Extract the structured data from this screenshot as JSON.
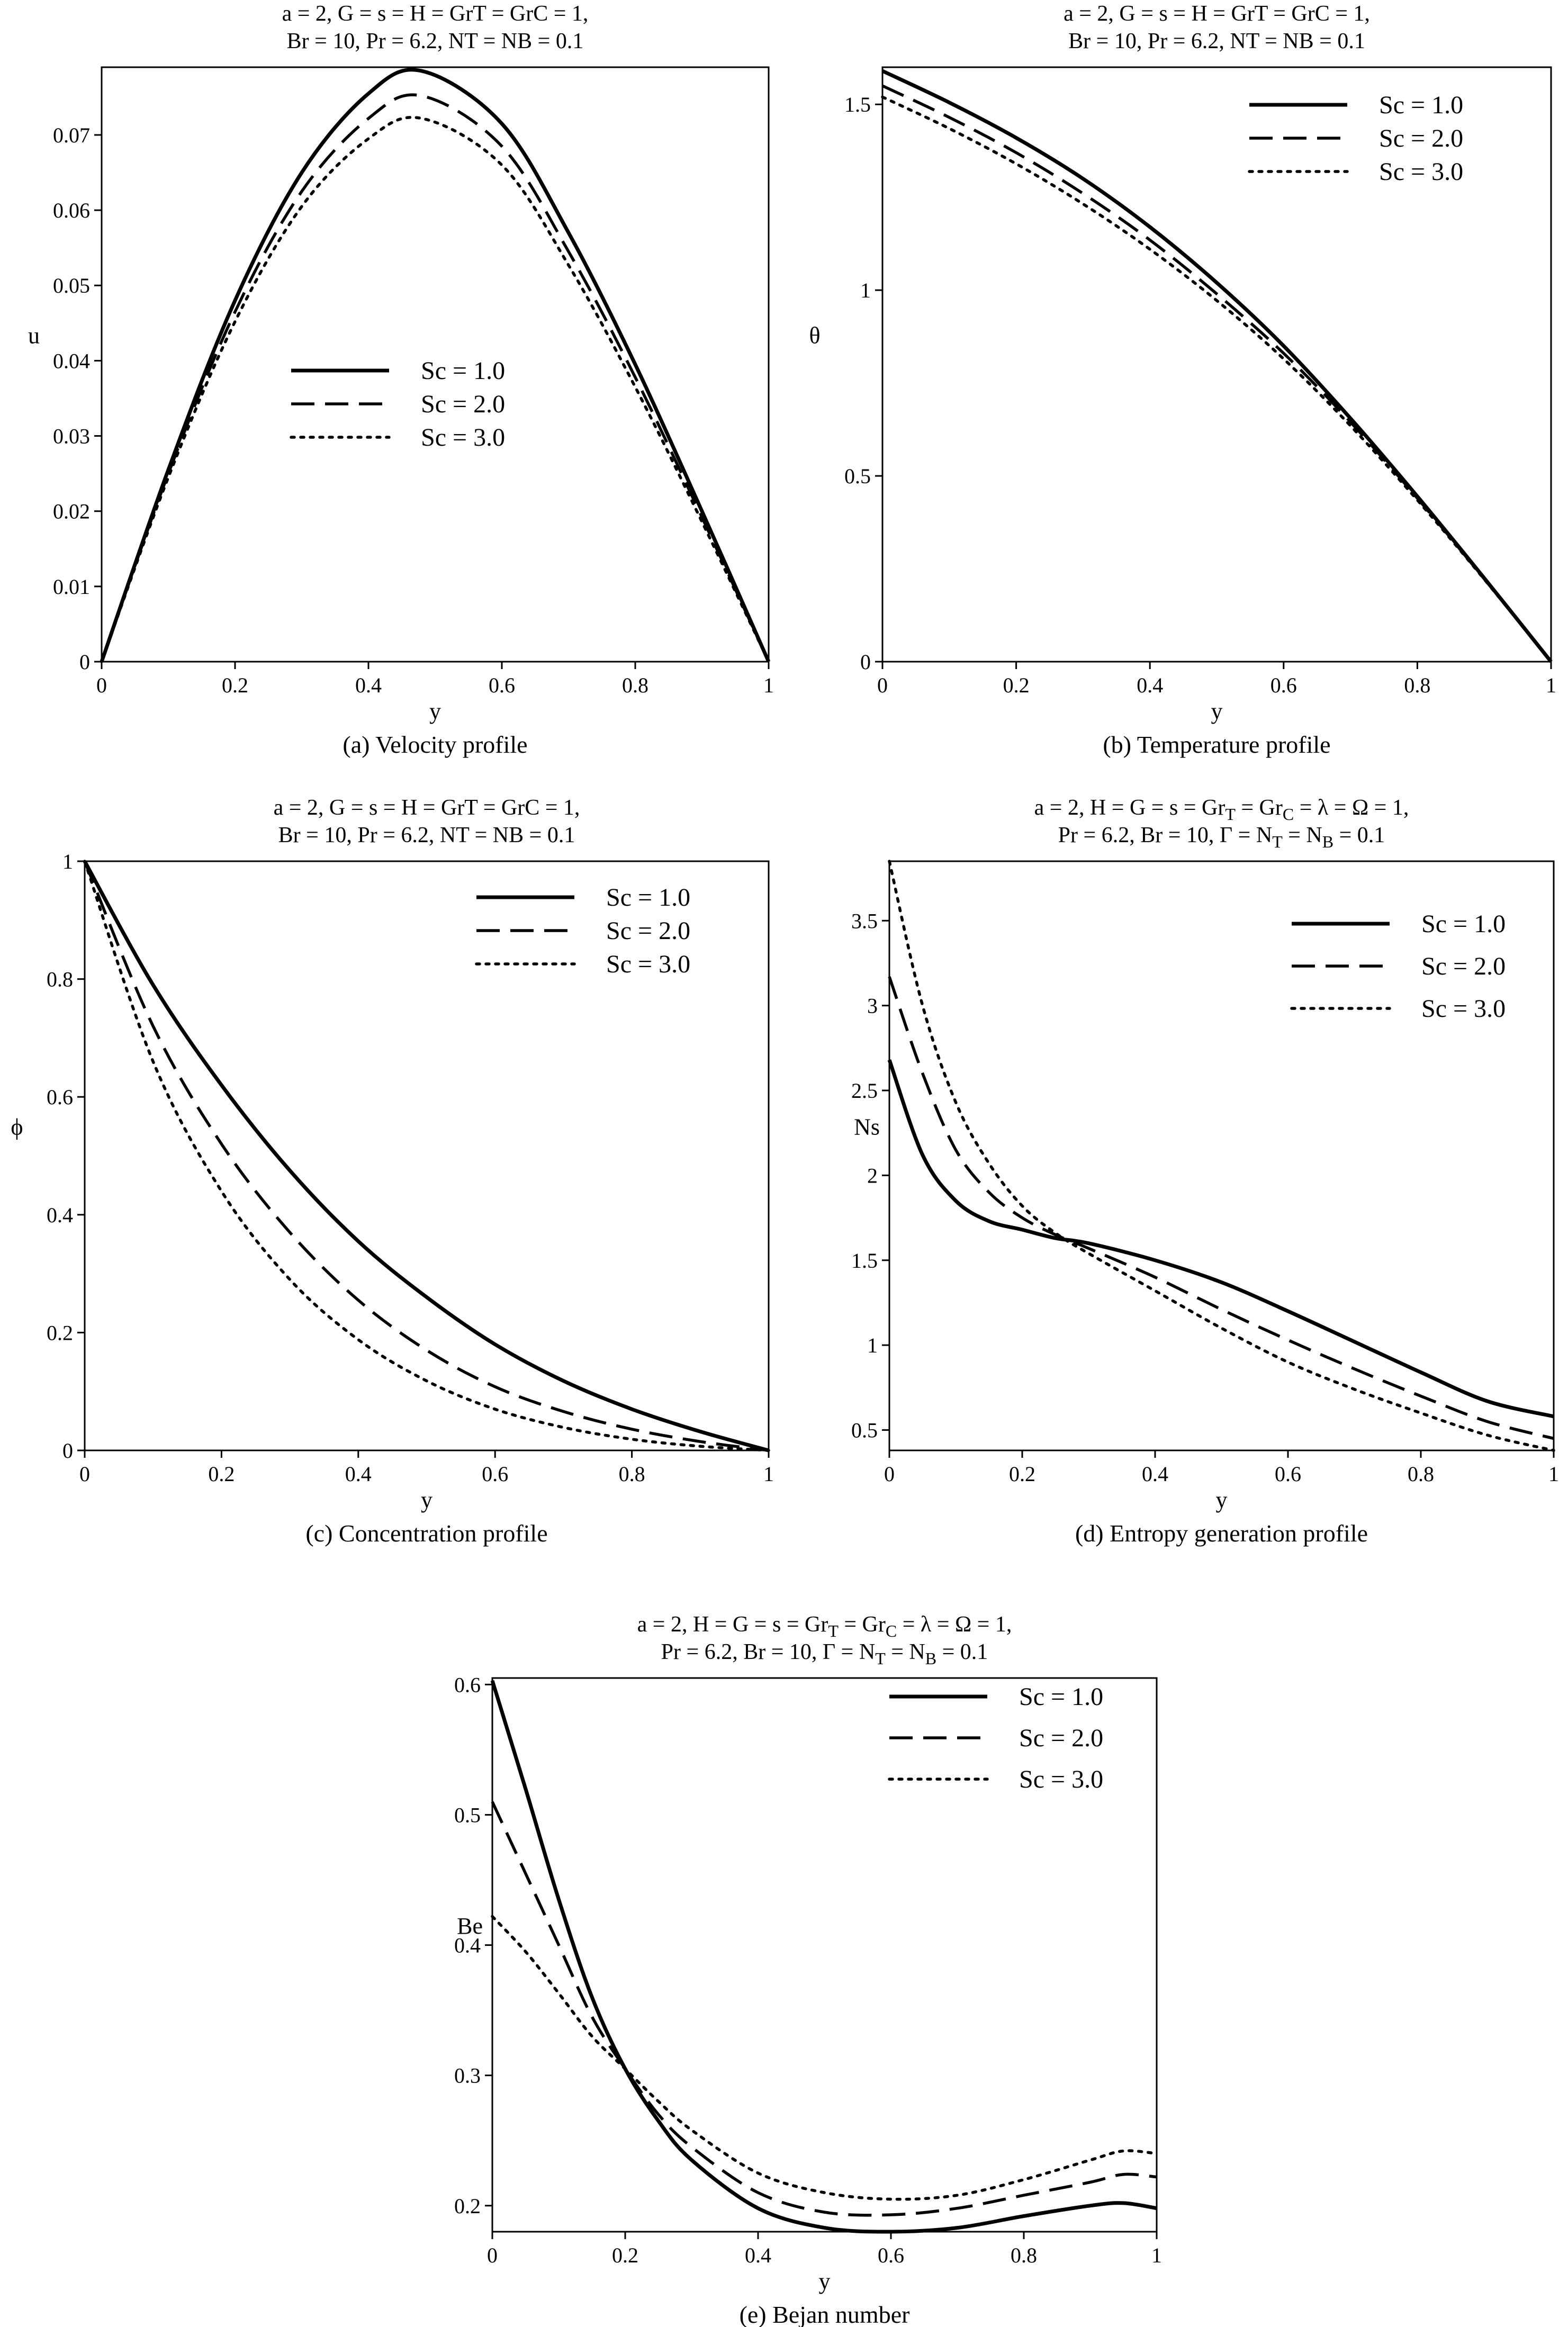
{
  "figure": {
    "panels": [
      "a",
      "b",
      "c",
      "d",
      "e"
    ]
  },
  "chart_data": [
    {
      "id": "a",
      "type": "line",
      "title": [
        "a = 2, G = s = H =  GrT = GrC = 1,",
        "Br = 10, Pr = 6.2, NT = NB = 0.1"
      ],
      "xlabel": "y",
      "ylabel": "u",
      "caption": "(a) Velocity profile",
      "xlim": [
        0,
        1
      ],
      "ylim": [
        0,
        0.079
      ],
      "xticks": [
        0,
        0.2,
        0.4,
        0.6,
        0.8,
        1
      ],
      "xtick_labels": [
        "0",
        "0.2",
        "0.4",
        "0.6",
        "0.8",
        "1"
      ],
      "yticks": [
        0,
        0.01,
        0.02,
        0.03,
        0.04,
        0.05,
        0.06,
        0.07
      ],
      "ytick_labels": [
        "0",
        "0.01",
        "0.02",
        "0.03",
        "0.04",
        "0.05",
        "0.06",
        "0.07"
      ],
      "legend_position": "center",
      "x": [
        0,
        0.1,
        0.2,
        0.3,
        0.4,
        0.48,
        0.6,
        0.7,
        0.8,
        0.9,
        1.0
      ],
      "series": [
        {
          "name": "Sc = 1.0",
          "style": "solid",
          "values": [
            0,
            0.0255,
            0.048,
            0.065,
            0.0755,
            0.0785,
            0.0715,
            0.057,
            0.0395,
            0.02,
            0
          ]
        },
        {
          "name": "Sc = 2.0",
          "style": "dashed",
          "values": [
            0,
            0.025,
            0.0465,
            0.0625,
            0.0722,
            0.0752,
            0.0685,
            0.0545,
            0.0378,
            0.0192,
            0
          ]
        },
        {
          "name": "Sc = 3.0",
          "style": "dotted",
          "values": [
            0,
            0.0245,
            0.0452,
            0.0605,
            0.0695,
            0.0722,
            0.066,
            0.0527,
            0.0365,
            0.0186,
            0
          ]
        }
      ]
    },
    {
      "id": "b",
      "type": "line",
      "title": [
        "a = 2, G = s = H =  GrT = GrC = 1,",
        "Br = 10, Pr = 6.2, NT = NB = 0.1"
      ],
      "xlabel": "y",
      "ylabel": "θ",
      "caption": "(b) Temperature profile",
      "xlim": [
        0,
        1
      ],
      "ylim": [
        0,
        1.6
      ],
      "xticks": [
        0,
        0.2,
        0.4,
        0.6,
        0.8,
        1
      ],
      "xtick_labels": [
        "0",
        "0.2",
        "0.4",
        "0.6",
        "0.8",
        "1"
      ],
      "yticks": [
        0,
        0.5,
        1,
        1.5
      ],
      "ytick_labels": [
        "0",
        "0.5",
        "1",
        "1.5"
      ],
      "legend_position": "top-right",
      "x": [
        0,
        0.1,
        0.2,
        0.3,
        0.4,
        0.5,
        0.6,
        0.7,
        0.8,
        0.9,
        1.0
      ],
      "series": [
        {
          "name": "Sc = 1.0",
          "style": "solid",
          "values": [
            1.59,
            1.505,
            1.41,
            1.3,
            1.17,
            1.02,
            0.85,
            0.655,
            0.445,
            0.225,
            0
          ]
        },
        {
          "name": "Sc = 2.0",
          "style": "dashed",
          "values": [
            1.55,
            1.465,
            1.37,
            1.26,
            1.135,
            0.99,
            0.83,
            0.645,
            0.44,
            0.223,
            0
          ]
        },
        {
          "name": "Sc = 3.0",
          "style": "dotted",
          "values": [
            1.52,
            1.435,
            1.34,
            1.232,
            1.11,
            0.972,
            0.815,
            0.635,
            0.435,
            0.222,
            0
          ]
        }
      ]
    },
    {
      "id": "c",
      "type": "line",
      "title": [
        "a = 2, G = s = H =  GrT = GrC = 1,",
        "Br = 10, Pr = 6.2, NT = NB = 0.1"
      ],
      "xlabel": "y",
      "ylabel": "ϕ",
      "caption": "(c) Concentration profile",
      "xlim": [
        0,
        1
      ],
      "ylim": [
        0,
        1
      ],
      "xticks": [
        0,
        0.2,
        0.4,
        0.6,
        0.8,
        1
      ],
      "xtick_labels": [
        "0",
        "0.2",
        "0.4",
        "0.6",
        "0.8",
        "1"
      ],
      "yticks": [
        0,
        0.2,
        0.4,
        0.6,
        0.8,
        1
      ],
      "ytick_labels": [
        "0",
        "0.2",
        "0.4",
        "0.6",
        "0.8",
        "1"
      ],
      "legend_position": "top-right",
      "x": [
        0,
        0.1,
        0.2,
        0.3,
        0.4,
        0.5,
        0.6,
        0.7,
        0.8,
        0.9,
        1.0
      ],
      "series": [
        {
          "name": "Sc = 1.0",
          "style": "solid",
          "values": [
            1.0,
            0.79,
            0.62,
            0.475,
            0.355,
            0.26,
            0.18,
            0.118,
            0.07,
            0.032,
            0
          ]
        },
        {
          "name": "Sc = 2.0",
          "style": "dashed",
          "values": [
            1.0,
            0.72,
            0.52,
            0.37,
            0.255,
            0.17,
            0.108,
            0.066,
            0.036,
            0.015,
            0
          ]
        },
        {
          "name": "Sc = 3.0",
          "style": "dotted",
          "values": [
            1.0,
            0.66,
            0.44,
            0.29,
            0.188,
            0.118,
            0.07,
            0.039,
            0.019,
            0.007,
            0
          ]
        }
      ]
    },
    {
      "id": "d",
      "type": "line",
      "title": [
        "a = 2, H = G = s = Gr_T = Gr_C = λ = Ω  = 1,",
        "Pr = 6.2, Br = 10, Γ = N_T = N_B = 0.1"
      ],
      "xlabel": "y",
      "ylabel": "Ns",
      "caption": "(d) Entropy generation profile",
      "xlim": [
        0,
        1
      ],
      "ylim": [
        0.38,
        3.85
      ],
      "xticks": [
        0,
        0.2,
        0.4,
        0.6,
        0.8,
        1
      ],
      "xtick_labels": [
        "0",
        "0.2",
        "0.4",
        "0.6",
        "0.8",
        "1"
      ],
      "yticks": [
        0.5,
        1,
        1.5,
        2,
        2.5,
        3,
        3.5
      ],
      "ytick_labels": [
        "0.5",
        "1",
        "1.5",
        "2",
        "2.5",
        "3",
        "3.5"
      ],
      "legend_position": "top-right",
      "x": [
        0,
        0.05,
        0.1,
        0.15,
        0.2,
        0.25,
        0.3,
        0.4,
        0.5,
        0.6,
        0.7,
        0.8,
        0.9,
        1.0
      ],
      "series": [
        {
          "name": "Sc = 1.0",
          "style": "solid",
          "values": [
            2.68,
            2.12,
            1.85,
            1.73,
            1.68,
            1.63,
            1.6,
            1.5,
            1.37,
            1.2,
            1.02,
            0.84,
            0.67,
            0.58
          ]
        },
        {
          "name": "Sc = 2.0",
          "style": "dashed",
          "values": [
            3.17,
            2.6,
            2.15,
            1.9,
            1.75,
            1.65,
            1.57,
            1.4,
            1.21,
            1.03,
            0.86,
            0.7,
            0.55,
            0.45
          ]
        },
        {
          "name": "Sc = 3.0",
          "style": "dotted",
          "values": [
            3.85,
            3.0,
            2.43,
            2.07,
            1.82,
            1.66,
            1.54,
            1.32,
            1.1,
            0.9,
            0.74,
            0.6,
            0.47,
            0.38
          ]
        }
      ]
    },
    {
      "id": "e",
      "type": "line",
      "title": [
        "a = 2, H = G = s = Gr_T = Gr_C = λ = Ω  = 1,",
        "Pr = 6.2, Br = 10, Γ = N_T = N_B = 0.1"
      ],
      "xlabel": "y",
      "ylabel": "Be",
      "caption": "(e) Bejan number",
      "xlim": [
        0,
        1
      ],
      "ylim": [
        0.18,
        0.605
      ],
      "xticks": [
        0,
        0.2,
        0.4,
        0.6,
        0.8,
        1
      ],
      "xtick_labels": [
        "0",
        "0.2",
        "0.4",
        "0.6",
        "0.8",
        "1"
      ],
      "yticks": [
        0.2,
        0.3,
        0.4,
        0.5,
        0.6
      ],
      "ytick_labels": [
        "0.2",
        "0.3",
        "0.4",
        "0.5",
        "0.6"
      ],
      "legend_position": "top-right",
      "x": [
        0,
        0.05,
        0.1,
        0.15,
        0.2,
        0.25,
        0.3,
        0.4,
        0.5,
        0.6,
        0.7,
        0.8,
        0.9,
        0.95,
        1.0
      ],
      "series": [
        {
          "name": "Sc = 1.0",
          "style": "solid",
          "values": [
            0.603,
            0.52,
            0.435,
            0.36,
            0.305,
            0.265,
            0.235,
            0.198,
            0.183,
            0.18,
            0.183,
            0.192,
            0.2,
            0.202,
            0.198
          ]
        },
        {
          "name": "Sc = 2.0",
          "style": "dashed",
          "values": [
            0.51,
            0.455,
            0.4,
            0.345,
            0.305,
            0.27,
            0.245,
            0.21,
            0.195,
            0.193,
            0.198,
            0.208,
            0.218,
            0.224,
            0.222
          ]
        },
        {
          "name": "Sc = 3.0",
          "style": "dotted",
          "values": [
            0.422,
            0.395,
            0.363,
            0.33,
            0.305,
            0.28,
            0.258,
            0.225,
            0.21,
            0.205,
            0.208,
            0.22,
            0.235,
            0.242,
            0.24
          ]
        }
      ]
    }
  ]
}
